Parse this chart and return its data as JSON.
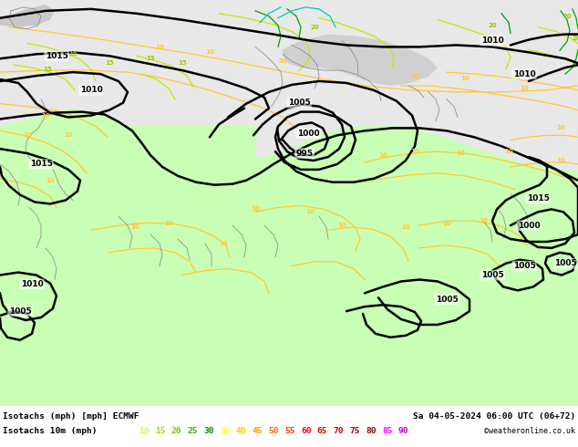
{
  "title_left": "Isotachs (mph) [mph] ECMWF",
  "title_right": "Sa 04-05-2024 06:00 UTC (06+72)",
  "subtitle_left": "Isotachs 10m (mph)",
  "credit": "©weatheronline.co.uk",
  "legend_values": [
    10,
    15,
    20,
    25,
    30,
    35,
    40,
    45,
    50,
    55,
    60,
    65,
    70,
    75,
    80,
    85,
    90
  ],
  "legend_colors": [
    "#c8ff32",
    "#96e600",
    "#64c800",
    "#32aa00",
    "#008c00",
    "#ffff00",
    "#ffc800",
    "#ff9600",
    "#ff6400",
    "#ff3200",
    "#ff0000",
    "#e60000",
    "#c80000",
    "#aa0000",
    "#960000",
    "#ff00ff",
    "#c800c8"
  ],
  "bg_color_sea": "#e8e8e8",
  "bg_color_land": "#c8ffb4",
  "bottom_bar_color": "#ffffff",
  "fig_width": 6.34,
  "fig_height": 4.9,
  "dpi": 100,
  "map_top_color": "#dcdcdc",
  "coastline_color": "#808080",
  "isobar_color": "#000000",
  "isotach_yellow": "#ffc832",
  "isotach_green_light": "#c8ff32",
  "isotach_green_mid": "#96e600",
  "isotach_green_dark": "#32aa00",
  "isotach_teal": "#00c8c8"
}
